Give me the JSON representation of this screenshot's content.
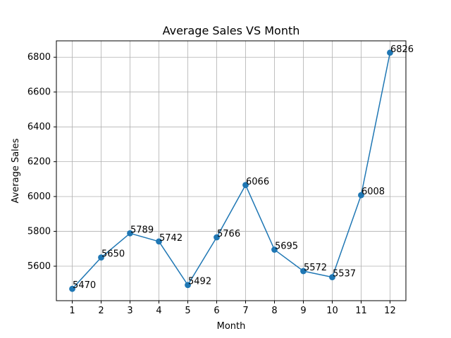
{
  "chart_data": {
    "type": "line",
    "title": "Average Sales VS Month",
    "xlabel": "Month",
    "ylabel": "Average Sales",
    "x": [
      1,
      2,
      3,
      4,
      5,
      6,
      7,
      8,
      9,
      10,
      11,
      12
    ],
    "series": [
      {
        "values": [
          5470,
          5650,
          5789,
          5742,
          5492,
          5766,
          6066,
          5695,
          5572,
          5537,
          6008,
          6826
        ],
        "color": "#1f77b4",
        "marker": "circle"
      }
    ],
    "data_labels": [
      "5470",
      "5650",
      "5789",
      "5742",
      "5492",
      "5766",
      "6066",
      "5695",
      "5572",
      "5537",
      "6008",
      "6826"
    ],
    "xticks": [
      1,
      2,
      3,
      4,
      5,
      6,
      7,
      8,
      9,
      10,
      11,
      12
    ],
    "yticks": [
      5600,
      5800,
      6000,
      6200,
      6400,
      6600,
      6800
    ],
    "xlim": [
      0.45,
      12.55
    ],
    "ylim": [
      5402,
      6894
    ],
    "grid": true,
    "legend": "none"
  }
}
